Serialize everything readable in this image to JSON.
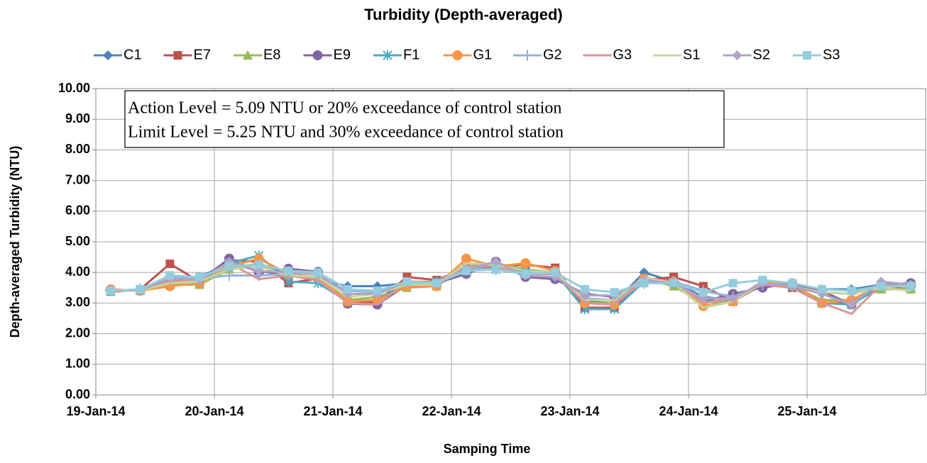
{
  "chart_data": {
    "type": "line",
    "title": "Turbidity (Depth-averaged)",
    "x_label": "Samping Time",
    "y_label": "Depth-averaged Turbidity (NTU)",
    "annotations": [
      "Action Level = 5.09 NTU or 20% exceedance of control station",
      "Limit Level = 5.25 NTU and 30% exceedance of control station"
    ],
    "x": [
      0.125,
      0.375,
      0.625,
      0.875,
      1.125,
      1.375,
      1.625,
      1.875,
      2.125,
      2.375,
      2.625,
      2.875,
      3.125,
      3.375,
      3.625,
      3.875,
      4.125,
      4.375,
      4.625,
      4.875,
      5.125,
      5.375,
      5.625,
      5.875,
      6.125,
      6.375,
      6.625,
      6.875
    ],
    "xlim": [
      0,
      7
    ],
    "xticks": [
      {
        "value": 0,
        "label": "19-Jan-14"
      },
      {
        "value": 1,
        "label": "20-Jan-14"
      },
      {
        "value": 2,
        "label": "21-Jan-14"
      },
      {
        "value": 3,
        "label": "22-Jan-14"
      },
      {
        "value": 4,
        "label": "23-Jan-14"
      },
      {
        "value": 5,
        "label": "24-Jan-14"
      },
      {
        "value": 6,
        "label": "25-Jan-14"
      }
    ],
    "ylim": [
      0,
      10
    ],
    "yticks": [
      {
        "value": 0,
        "label": "0.00"
      },
      {
        "value": 1,
        "label": "1.00"
      },
      {
        "value": 2,
        "label": "2.00"
      },
      {
        "value": 3,
        "label": "3.00"
      },
      {
        "value": 4,
        "label": "4.00"
      },
      {
        "value": 5,
        "label": "5.00"
      },
      {
        "value": 6,
        "label": "6.00"
      },
      {
        "value": 7,
        "label": "7.00"
      },
      {
        "value": 8,
        "label": "8.00"
      },
      {
        "value": 9,
        "label": "9.00"
      },
      {
        "value": 10,
        "label": "10.00"
      }
    ],
    "grid": true,
    "legend": "top",
    "series": [
      {
        "name": "C1",
        "color": "#4f81bd",
        "marker": "diamond",
        "values": [
          3.4,
          3.42,
          3.75,
          3.85,
          4.3,
          4.05,
          3.9,
          3.75,
          3.55,
          3.55,
          3.65,
          3.65,
          4.1,
          4.15,
          4.0,
          3.95,
          3.05,
          3.0,
          4.0,
          3.7,
          3.2,
          3.1,
          3.6,
          3.55,
          3.45,
          3.45,
          3.6,
          3.6
        ]
      },
      {
        "name": "E7",
        "color": "#c0504d",
        "marker": "square",
        "values": [
          3.38,
          3.45,
          4.28,
          3.7,
          4.4,
          4.35,
          3.65,
          3.8,
          3.0,
          3.05,
          3.85,
          3.75,
          4.15,
          4.2,
          4.25,
          4.15,
          2.85,
          2.85,
          3.75,
          3.85,
          3.55,
          3.05,
          3.6,
          3.5,
          3.0,
          3.05,
          3.45,
          3.5
        ]
      },
      {
        "name": "E8",
        "color": "#9bbb59",
        "marker": "triangle",
        "values": [
          3.4,
          3.42,
          3.6,
          3.6,
          4.1,
          4.3,
          3.9,
          3.8,
          3.1,
          3.2,
          3.5,
          3.55,
          4.2,
          4.3,
          4.1,
          4.0,
          3.0,
          3.0,
          3.8,
          3.55,
          3.0,
          3.1,
          3.6,
          3.55,
          3.1,
          3.1,
          3.45,
          3.45
        ]
      },
      {
        "name": "E9",
        "color": "#8064a2",
        "marker": "circle",
        "values": [
          3.42,
          3.4,
          3.7,
          3.72,
          4.45,
          4.0,
          4.12,
          4.02,
          2.98,
          2.95,
          3.6,
          3.65,
          3.95,
          4.35,
          3.85,
          3.78,
          3.3,
          3.2,
          3.8,
          3.65,
          3.05,
          3.3,
          3.5,
          3.65,
          3.4,
          2.95,
          3.6,
          3.65
        ]
      },
      {
        "name": "F1",
        "color": "#4bacc6",
        "marker": "star",
        "values": [
          3.4,
          3.42,
          3.8,
          3.65,
          4.3,
          4.55,
          3.7,
          3.65,
          3.05,
          3.1,
          3.65,
          3.7,
          4.05,
          4.1,
          4.0,
          4.0,
          2.8,
          2.8,
          3.7,
          3.65,
          3.05,
          3.1,
          3.7,
          3.55,
          3.0,
          2.95,
          3.55,
          3.55
        ]
      },
      {
        "name": "G1",
        "color": "#f79646",
        "marker": "circle",
        "values": [
          3.45,
          3.4,
          3.55,
          3.65,
          4.2,
          4.45,
          3.95,
          3.85,
          3.05,
          3.1,
          3.55,
          3.55,
          4.45,
          4.2,
          4.3,
          4.05,
          3.0,
          2.95,
          3.8,
          3.7,
          2.9,
          3.05,
          3.7,
          3.65,
          3.0,
          3.1,
          3.6,
          3.55
        ]
      },
      {
        "name": "G2",
        "color": "#95b3d7",
        "marker": "plus",
        "values": [
          3.4,
          3.45,
          3.85,
          3.8,
          3.9,
          3.9,
          3.95,
          3.8,
          3.4,
          3.35,
          3.65,
          3.65,
          4.15,
          4.1,
          3.95,
          3.95,
          3.15,
          3.1,
          3.65,
          3.7,
          3.4,
          3.2,
          3.6,
          3.55,
          3.35,
          3.3,
          3.6,
          3.55
        ]
      },
      {
        "name": "G3",
        "color": "#da9694",
        "marker": "none",
        "values": [
          3.35,
          3.45,
          3.7,
          3.75,
          4.3,
          3.78,
          3.9,
          3.75,
          3.0,
          2.95,
          3.7,
          3.7,
          4.2,
          4.2,
          3.95,
          3.95,
          3.0,
          2.95,
          3.75,
          3.7,
          3.0,
          3.15,
          3.6,
          3.5,
          3.0,
          2.65,
          3.6,
          3.5
        ]
      },
      {
        "name": "S1",
        "color": "#c3d69b",
        "marker": "none",
        "values": [
          3.42,
          3.4,
          3.65,
          3.7,
          4.1,
          4.2,
          3.9,
          3.85,
          3.2,
          3.3,
          3.6,
          3.6,
          4.3,
          4.25,
          4.05,
          4.0,
          3.1,
          3.1,
          3.85,
          3.65,
          2.85,
          3.05,
          3.65,
          3.55,
          3.35,
          3.3,
          3.5,
          3.4
        ]
      },
      {
        "name": "S2",
        "color": "#b3a2c7",
        "marker": "diamond",
        "values": [
          3.42,
          3.42,
          3.8,
          3.75,
          4.35,
          4.05,
          4.0,
          3.95,
          3.3,
          3.3,
          3.7,
          3.65,
          4.1,
          4.35,
          3.9,
          3.85,
          3.25,
          3.25,
          3.75,
          3.65,
          3.15,
          3.15,
          3.65,
          3.55,
          3.3,
          2.95,
          3.7,
          3.6
        ]
      },
      {
        "name": "S3",
        "color": "#93cddd",
        "marker": "square",
        "values": [
          3.4,
          3.45,
          3.9,
          3.85,
          4.2,
          4.25,
          4.05,
          4.0,
          3.45,
          3.4,
          3.7,
          3.65,
          4.05,
          4.1,
          3.95,
          4.0,
          3.45,
          3.35,
          3.65,
          3.65,
          3.35,
          3.65,
          3.75,
          3.65,
          3.45,
          3.4,
          3.55,
          3.55
        ]
      }
    ]
  }
}
